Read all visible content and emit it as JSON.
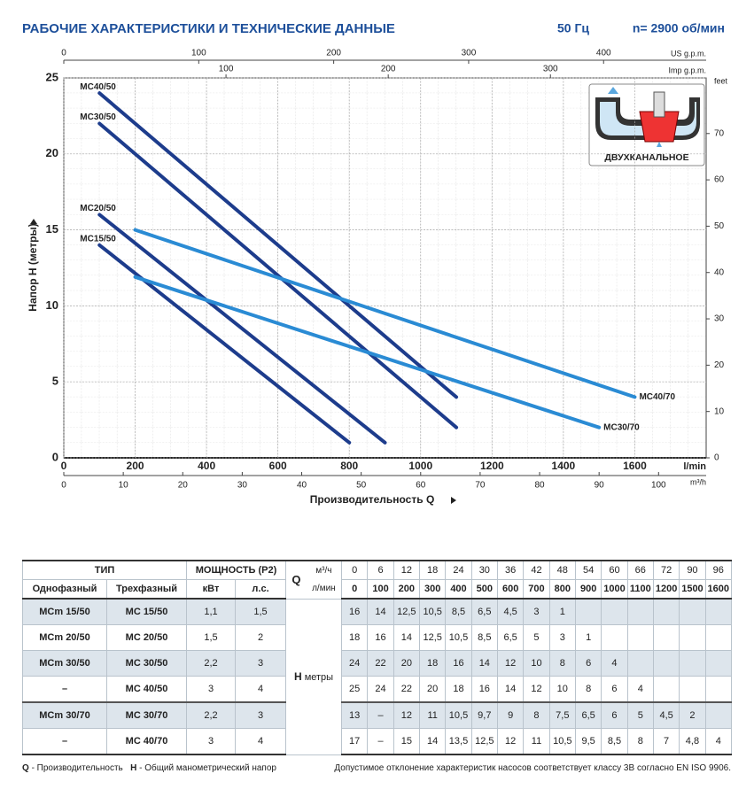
{
  "chart_data": {
    "type": "line",
    "title": "РАБОЧИЕ ХАРАКТЕРИСТИКИ И ТЕХНИЧЕСКИЕ ДАННЫЕ",
    "frequency": "50 Гц",
    "speed": "n= 2900 об/мин",
    "ylabel": "Напор Н (метры)",
    "xlabel": "Производительность Q",
    "x_unit": "l/min",
    "xlim": [
      0,
      1800
    ],
    "xticks": [
      0,
      200,
      400,
      600,
      800,
      1000,
      1200,
      1400,
      1600
    ],
    "ylim": [
      0,
      25
    ],
    "yticks": [
      0,
      5,
      10,
      15,
      20,
      25
    ],
    "x2": {
      "unit": "m³/h",
      "xlim": [
        0,
        108
      ],
      "xticks": [
        0,
        10,
        20,
        30,
        40,
        50,
        60,
        70,
        80,
        90,
        100
      ]
    },
    "x3": {
      "unit": "US g.p.m.",
      "xlim": [
        0,
        476
      ],
      "xticks": [
        0,
        100,
        200,
        300,
        400
      ]
    },
    "x4": {
      "unit": "Imp g.p.m.",
      "xlim": [
        0,
        396
      ],
      "xticks": [
        100,
        200,
        300
      ]
    },
    "y2": {
      "unit": "feet",
      "ylim": [
        0,
        82
      ],
      "yticks": [
        0,
        10,
        20,
        30,
        40,
        50,
        60,
        70
      ]
    },
    "grid": true,
    "inset_label": "ДВУХКАНАЛЬНОЕ",
    "series": [
      {
        "name": "MC40/50",
        "color": "#1d3c8c",
        "label_position": "start",
        "x": [
          100,
          1100
        ],
        "values": [
          24,
          4
        ]
      },
      {
        "name": "MC30/50",
        "color": "#1d3c8c",
        "label_position": "start",
        "x": [
          100,
          1100
        ],
        "values": [
          22,
          2
        ]
      },
      {
        "name": "MC20/50",
        "color": "#1d3c8c",
        "label_position": "start",
        "x": [
          100,
          900
        ],
        "values": [
          16,
          1
        ]
      },
      {
        "name": "MC15/50",
        "color": "#1d3c8c",
        "label_position": "start",
        "x": [
          100,
          800
        ],
        "values": [
          14,
          1
        ]
      },
      {
        "name": "MC40/70",
        "color": "#2a8bd4",
        "label_position": "end",
        "x": [
          200,
          1600
        ],
        "values": [
          15,
          4
        ]
      },
      {
        "name": "MC30/70",
        "color": "#2a8bd4",
        "label_position": "end",
        "x": [
          200,
          1500
        ],
        "values": [
          11.9,
          2
        ]
      }
    ]
  },
  "table": {
    "header": {
      "type": "ТИП",
      "power": "МОЩНОСТЬ (P2)",
      "q": "Q",
      "q_m3h": "м³/ч",
      "q_lmin": "л/мин",
      "single_phase": "Однофазный",
      "three_phase": "Трехфазный",
      "kw": "кВт",
      "hp": "л.с.",
      "h": "H",
      "h_unit": "метры"
    },
    "m3h": [
      "0",
      "6",
      "12",
      "18",
      "24",
      "30",
      "36",
      "42",
      "48",
      "54",
      "60",
      "66",
      "72",
      "90",
      "96"
    ],
    "lmin": [
      "0",
      "100",
      "200",
      "300",
      "400",
      "500",
      "600",
      "700",
      "800",
      "900",
      "1000",
      "1100",
      "1200",
      "1500",
      "1600"
    ],
    "rows": [
      {
        "single": "MCm 15/50",
        "three": "MC 15/50",
        "kw": "1,1",
        "hp": "1,5",
        "values": [
          "16",
          "14",
          "12,5",
          "10,5",
          "8,5",
          "6,5",
          "4,5",
          "3",
          "1"
        ]
      },
      {
        "single": "MCm 20/50",
        "three": "MC 20/50",
        "kw": "1,5",
        "hp": "2",
        "values": [
          "18",
          "16",
          "14",
          "12,5",
          "10,5",
          "8,5",
          "6,5",
          "5",
          "3",
          "1"
        ]
      },
      {
        "single": "MCm 30/50",
        "three": "MC 30/50",
        "kw": "2,2",
        "hp": "3",
        "values": [
          "24",
          "22",
          "20",
          "18",
          "16",
          "14",
          "12",
          "10",
          "8",
          "6",
          "4"
        ]
      },
      {
        "single": "–",
        "three": "MC 40/50",
        "kw": "3",
        "hp": "4",
        "values": [
          "25",
          "24",
          "22",
          "20",
          "18",
          "16",
          "14",
          "12",
          "10",
          "8",
          "6",
          "4"
        ]
      },
      {
        "single": "MCm 30/70",
        "three": "MC 30/70",
        "kw": "2,2",
        "hp": "3",
        "values": [
          "13",
          "–",
          "12",
          "11",
          "10,5",
          "9,7",
          "9",
          "8",
          "7,5",
          "6,5",
          "6",
          "5",
          "4,5",
          "2"
        ]
      },
      {
        "single": "–",
        "three": "MC 40/70",
        "kw": "3",
        "hp": "4",
        "values": [
          "17",
          "–",
          "15",
          "14",
          "13,5",
          "12,5",
          "12",
          "11",
          "10,5",
          "9,5",
          "8,5",
          "8",
          "7",
          "4,8",
          "4"
        ]
      }
    ]
  },
  "footer": {
    "q": "Q",
    "q_text": "- Производительность",
    "h": "H",
    "h_text": "- Общий манометрический напор",
    "note": "Допустимое отклонение характеристик насосов соответствует классу 3B согласно EN ISO 9906."
  }
}
